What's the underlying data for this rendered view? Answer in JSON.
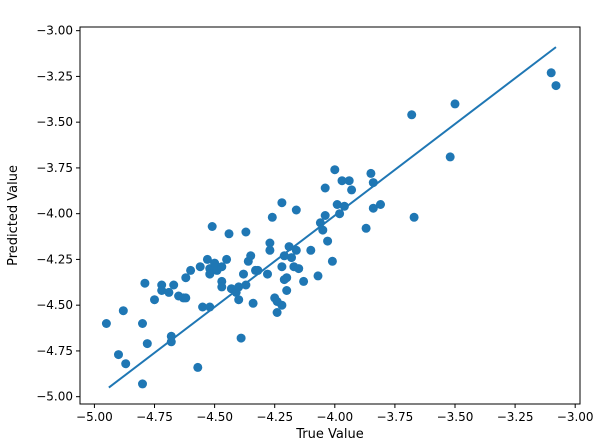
{
  "chart_data": {
    "type": "scatter",
    "xlabel": "True Value",
    "ylabel": "Predicted Value",
    "xlim": [
      -5.06,
      -2.98
    ],
    "ylim": [
      -5.04,
      -2.98
    ],
    "x_ticks": [
      -5.0,
      -4.75,
      -4.5,
      -4.25,
      -4.0,
      -3.75,
      -3.5,
      -3.25,
      -3.0
    ],
    "x_tick_labels": [
      "−5.00",
      "−4.75",
      "−4.50",
      "−4.25",
      "−4.00",
      "−3.75",
      "−3.50",
      "−3.25",
      "−3.00"
    ],
    "y_ticks": [
      -5.0,
      -4.75,
      -4.5,
      -4.25,
      -4.0,
      -3.75,
      -3.5,
      -3.25,
      -3.0
    ],
    "y_tick_labels": [
      "−5.00",
      "−4.75",
      "−4.50",
      "−4.25",
      "−4.00",
      "−3.75",
      "−3.50",
      "−3.25",
      "−3.00"
    ],
    "grid": false,
    "marker_color": "#1f77b4",
    "line_color": "#1f77b4",
    "points": [
      [
        -4.95,
        -4.6
      ],
      [
        -4.9,
        -4.77
      ],
      [
        -4.87,
        -4.82
      ],
      [
        -4.88,
        -4.53
      ],
      [
        -4.8,
        -4.93
      ],
      [
        -4.8,
        -4.6
      ],
      [
        -4.78,
        -4.71
      ],
      [
        -4.79,
        -4.38
      ],
      [
        -4.75,
        -4.47
      ],
      [
        -4.72,
        -4.39
      ],
      [
        -4.72,
        -4.42
      ],
      [
        -4.69,
        -4.43
      ],
      [
        -4.68,
        -4.7
      ],
      [
        -4.68,
        -4.67
      ],
      [
        -4.67,
        -4.39
      ],
      [
        -4.65,
        -4.45
      ],
      [
        -4.63,
        -4.46
      ],
      [
        -4.62,
        -4.46
      ],
      [
        -4.62,
        -4.35
      ],
      [
        -4.6,
        -4.31
      ],
      [
        -4.57,
        -4.84
      ],
      [
        -4.56,
        -4.29
      ],
      [
        -4.55,
        -4.51
      ],
      [
        -4.53,
        -4.25
      ],
      [
        -4.52,
        -4.51
      ],
      [
        -4.52,
        -4.3
      ],
      [
        -4.52,
        -4.33
      ],
      [
        -4.51,
        -4.07
      ],
      [
        -4.5,
        -4.27
      ],
      [
        -4.49,
        -4.31
      ],
      [
        -4.47,
        -4.29
      ],
      [
        -4.47,
        -4.37
      ],
      [
        -4.47,
        -4.4
      ],
      [
        -4.45,
        -4.25
      ],
      [
        -4.44,
        -4.11
      ],
      [
        -4.43,
        -4.41
      ],
      [
        -4.41,
        -4.43
      ],
      [
        -4.4,
        -4.4
      ],
      [
        -4.4,
        -4.47
      ],
      [
        -4.39,
        -4.68
      ],
      [
        -4.38,
        -4.33
      ],
      [
        -4.37,
        -4.1
      ],
      [
        -4.37,
        -4.39
      ],
      [
        -4.36,
        -4.26
      ],
      [
        -4.35,
        -4.23
      ],
      [
        -4.34,
        -4.49
      ],
      [
        -4.33,
        -4.31
      ],
      [
        -4.32,
        -4.31
      ],
      [
        -4.28,
        -4.33
      ],
      [
        -4.27,
        -4.16
      ],
      [
        -4.27,
        -4.2
      ],
      [
        -4.26,
        -4.02
      ],
      [
        -4.25,
        -4.46
      ],
      [
        -4.24,
        -4.48
      ],
      [
        -4.24,
        -4.54
      ],
      [
        -4.22,
        -4.5
      ],
      [
        -4.22,
        -4.29
      ],
      [
        -4.21,
        -4.23
      ],
      [
        -4.21,
        -4.36
      ],
      [
        -4.2,
        -4.35
      ],
      [
        -4.22,
        -3.94
      ],
      [
        -4.2,
        -4.42
      ],
      [
        -4.19,
        -4.18
      ],
      [
        -4.18,
        -4.24
      ],
      [
        -4.17,
        -4.29
      ],
      [
        -4.16,
        -4.2
      ],
      [
        -4.16,
        -3.98
      ],
      [
        -4.15,
        -4.3
      ],
      [
        -4.13,
        -4.37
      ],
      [
        -4.1,
        -4.2
      ],
      [
        -4.07,
        -4.34
      ],
      [
        -4.06,
        -4.05
      ],
      [
        -4.05,
        -4.09
      ],
      [
        -4.04,
        -4.01
      ],
      [
        -4.04,
        -3.86
      ],
      [
        -4.03,
        -4.15
      ],
      [
        -4.01,
        -4.26
      ],
      [
        -4.0,
        -3.76
      ],
      [
        -3.99,
        -3.95
      ],
      [
        -3.98,
        -4.0
      ],
      [
        -3.97,
        -3.82
      ],
      [
        -3.96,
        -3.96
      ],
      [
        -3.94,
        -3.82
      ],
      [
        -3.93,
        -3.87
      ],
      [
        -3.87,
        -4.08
      ],
      [
        -3.85,
        -3.78
      ],
      [
        -3.84,
        -3.83
      ],
      [
        -3.84,
        -3.97
      ],
      [
        -3.81,
        -3.95
      ],
      [
        -3.68,
        -3.46
      ],
      [
        -3.67,
        -4.02
      ],
      [
        -3.52,
        -3.69
      ],
      [
        -3.5,
        -3.4
      ],
      [
        -3.1,
        -3.23
      ],
      [
        -3.08,
        -3.3
      ]
    ],
    "fit_line": [
      [
        -4.94,
        -4.95
      ],
      [
        -3.08,
        -3.09
      ]
    ]
  }
}
